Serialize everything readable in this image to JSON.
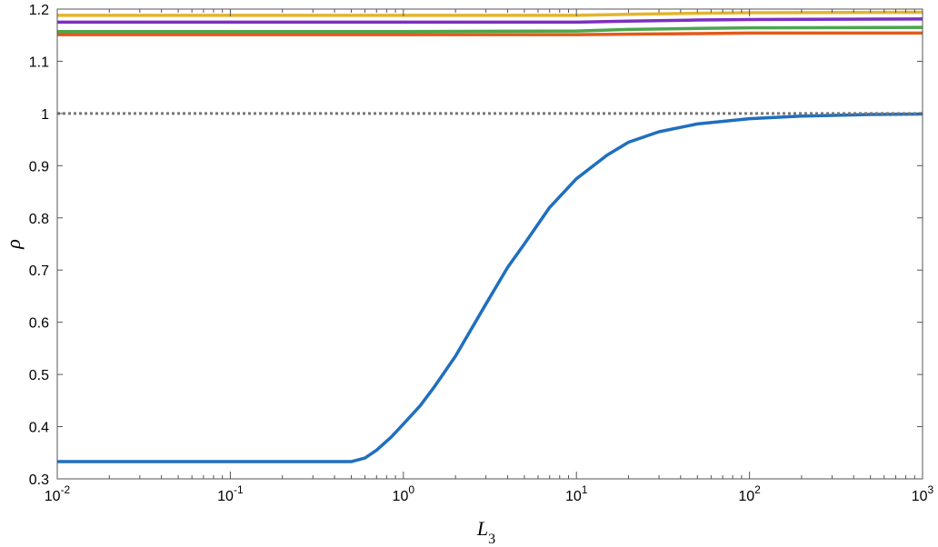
{
  "chart_data": {
    "type": "line",
    "xscale": "log",
    "xlim": [
      0.01,
      1000
    ],
    "ylim": [
      0.3,
      1.2
    ],
    "grid": false,
    "xlabel": "L",
    "xlabel_sub": "3",
    "ylabel": "ρ",
    "xticks": [
      {
        "base": "10",
        "exp": "-2",
        "value": 0.01
      },
      {
        "base": "10",
        "exp": "-1",
        "value": 0.1
      },
      {
        "base": "10",
        "exp": "0",
        "value": 1
      },
      {
        "base": "10",
        "exp": "1",
        "value": 10
      },
      {
        "base": "10",
        "exp": "2",
        "value": 100
      },
      {
        "base": "10",
        "exp": "3",
        "value": 1000
      }
    ],
    "yticks": [
      {
        "label": "0.3",
        "value": 0.3
      },
      {
        "label": "0.4",
        "value": 0.4
      },
      {
        "label": "0.5",
        "value": 0.5
      },
      {
        "label": "0.6",
        "value": 0.6
      },
      {
        "label": "0.7",
        "value": 0.7
      },
      {
        "label": "0.8",
        "value": 0.8
      },
      {
        "label": "0.9",
        "value": 0.9
      },
      {
        "label": "1",
        "value": 1
      },
      {
        "label": "1.1",
        "value": 1.1
      },
      {
        "label": "1.2",
        "value": 1.2
      }
    ],
    "series": [
      {
        "color": "#1f6fbf",
        "dashed": false,
        "x": [
          0.01,
          0.1,
          0.5,
          0.6,
          0.7,
          0.85,
          1.0,
          1.25,
          1.5,
          2.0,
          2.5,
          3.0,
          4.0,
          5.0,
          7.0,
          10,
          15,
          20,
          30,
          50,
          100,
          200,
          500,
          1000
        ],
        "y": [
          0.333,
          0.333,
          0.333,
          0.34,
          0.355,
          0.38,
          0.405,
          0.44,
          0.475,
          0.535,
          0.59,
          0.635,
          0.705,
          0.75,
          0.82,
          0.875,
          0.92,
          0.945,
          0.965,
          0.98,
          0.99,
          0.995,
          0.998,
          0.999
        ]
      },
      {
        "color": "#e35a1a",
        "dashed": false,
        "x": [
          0.01,
          1,
          10,
          20,
          50,
          100,
          1000
        ],
        "y": [
          1.151,
          1.151,
          1.151,
          1.152,
          1.153,
          1.154,
          1.154
        ]
      },
      {
        "color": "#4ca64c",
        "dashed": false,
        "x": [
          0.01,
          1,
          10,
          20,
          50,
          100,
          1000
        ],
        "y": [
          1.157,
          1.157,
          1.158,
          1.161,
          1.163,
          1.164,
          1.165
        ]
      },
      {
        "color": "#7d2fbf",
        "dashed": false,
        "x": [
          0.01,
          1,
          10,
          20,
          50,
          100,
          1000
        ],
        "y": [
          1.175,
          1.175,
          1.175,
          1.177,
          1.179,
          1.18,
          1.181
        ]
      },
      {
        "color": "#e3b52e",
        "dashed": false,
        "x": [
          0.01,
          1,
          10,
          20,
          50,
          100,
          1000
        ],
        "y": [
          1.188,
          1.188,
          1.188,
          1.19,
          1.192,
          1.193,
          1.194
        ]
      },
      {
        "color": "#777777",
        "dashed": true,
        "x": [
          0.01,
          1000
        ],
        "y": [
          1.0,
          1.0
        ]
      }
    ]
  }
}
